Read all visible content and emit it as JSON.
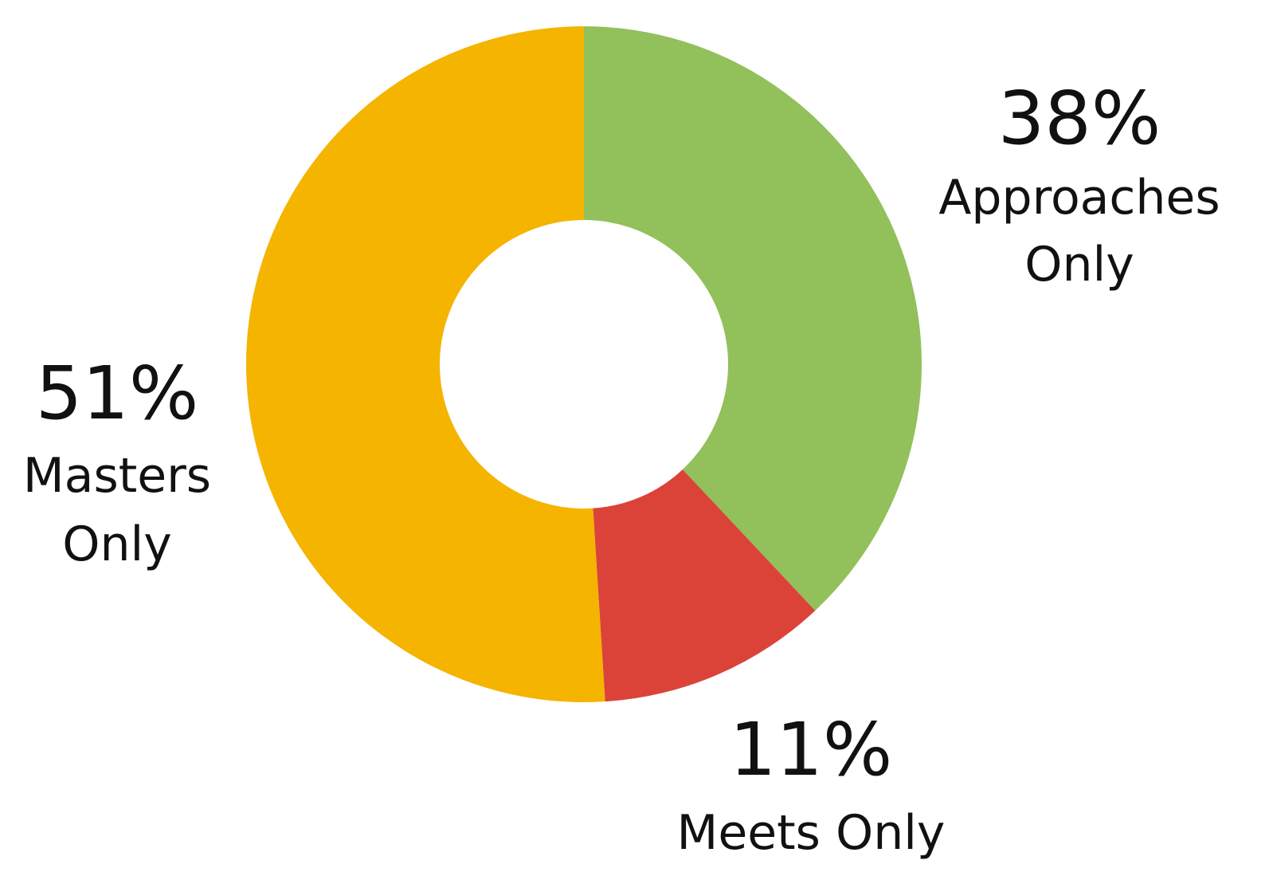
{
  "chart_data": {
    "type": "donut",
    "categories": [
      "Approaches Only",
      "Meets Only",
      "Masters Only"
    ],
    "values": [
      38,
      11,
      51
    ],
    "value_labels": [
      "38%",
      "11%",
      "51%"
    ],
    "colors": [
      "#92c05a",
      "#db4339",
      "#f4b400"
    ]
  }
}
